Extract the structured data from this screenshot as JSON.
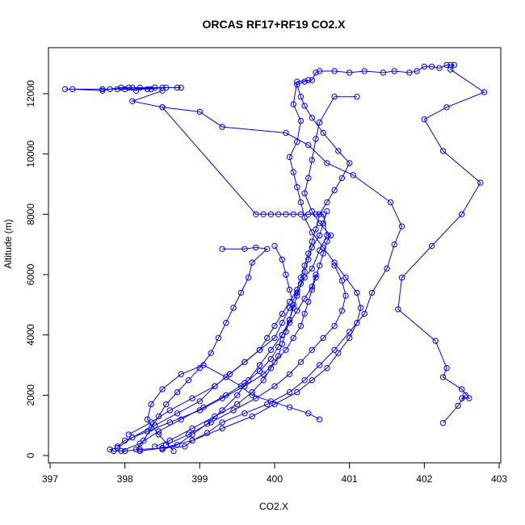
{
  "chart_data": {
    "type": "scatter",
    "title": "ORCAS RF17+RF19 CO2.X",
    "xlabel": "CO2.X",
    "ylabel": "Altitude (m)",
    "xlim": [
      397,
      403
    ],
    "ylim": [
      0,
      13000
    ],
    "x_ticks": [
      397,
      398,
      399,
      400,
      401,
      402,
      403
    ],
    "y_ticks": [
      0,
      2000,
      4000,
      6000,
      8000,
      10000,
      12000
    ],
    "grid": false,
    "legend": "none",
    "color": "#0000ff",
    "series": [
      {
        "values": [
          [
            398.75,
            12200
          ],
          [
            398.1,
            12200
          ],
          [
            397.9,
            12150
          ],
          [
            398.3,
            12150
          ],
          [
            398.5,
            12200
          ],
          [
            398.0,
            12150
          ],
          [
            397.7,
            12150
          ],
          [
            397.2,
            12150
          ],
          [
            397.3,
            12150
          ],
          [
            397.7,
            12100
          ],
          [
            397.8,
            12150
          ],
          [
            397.95,
            12200
          ],
          [
            398.05,
            12200
          ],
          [
            398.15,
            12100
          ],
          [
            398.2,
            12200
          ],
          [
            398.35,
            12150
          ],
          [
            398.4,
            12200
          ],
          [
            398.55,
            12200
          ],
          [
            398.7,
            12200
          ]
        ]
      },
      {
        "values": [
          [
            398.5,
            12100
          ],
          [
            398.1,
            11750
          ],
          [
            398.5,
            11550
          ],
          [
            399.75,
            8000
          ],
          [
            399.85,
            8000
          ],
          [
            399.95,
            8000
          ],
          [
            400.05,
            8000
          ],
          [
            400.15,
            8000
          ],
          [
            400.25,
            8000
          ],
          [
            400.35,
            8000
          ],
          [
            400.45,
            8000
          ],
          [
            400.55,
            8000
          ],
          [
            400.65,
            8000
          ],
          [
            400.7,
            7300
          ],
          [
            400.6,
            6800
          ],
          [
            400.5,
            6200
          ],
          [
            400.4,
            5900
          ],
          [
            400.3,
            5400
          ],
          [
            400.2,
            4900
          ],
          [
            400.1,
            4400
          ],
          [
            400.0,
            3900
          ],
          [
            399.8,
            3500
          ],
          [
            399.6,
            3100
          ],
          [
            399.4,
            2700
          ],
          [
            399.2,
            2300
          ],
          [
            399.0,
            1800
          ],
          [
            398.7,
            1400
          ],
          [
            398.4,
            1000
          ],
          [
            398.1,
            600
          ],
          [
            397.9,
            250
          ],
          [
            397.8,
            200
          ],
          [
            397.85,
            150
          ],
          [
            398.0,
            150
          ],
          [
            398.2,
            200
          ],
          [
            398.5,
            250
          ],
          [
            398.8,
            300
          ],
          [
            398.9,
            500
          ],
          [
            399.1,
            750
          ],
          [
            399.3,
            1100
          ],
          [
            399.6,
            1400
          ],
          [
            399.9,
            1700
          ],
          [
            400.2,
            2100
          ],
          [
            400.4,
            2500
          ],
          [
            400.6,
            3000
          ],
          [
            400.8,
            3500
          ],
          [
            401.0,
            4100
          ],
          [
            401.2,
            4700
          ],
          [
            401.3,
            5400
          ],
          [
            401.5,
            6200
          ],
          [
            401.6,
            7000
          ],
          [
            401.7,
            7600
          ],
          [
            401.55,
            8400
          ],
          [
            401.05,
            9300
          ],
          [
            400.7,
            9700
          ],
          [
            400.45,
            10300
          ],
          [
            400.15,
            10700
          ],
          [
            399.3,
            10900
          ],
          [
            399.0,
            11400
          ],
          [
            398.5,
            11550
          ]
        ]
      },
      {
        "values": [
          [
            398.05,
            700
          ],
          [
            398.35,
            1100
          ],
          [
            398.6,
            1500
          ],
          [
            398.9,
            1900
          ],
          [
            399.2,
            2300
          ],
          [
            399.4,
            2700
          ],
          [
            399.6,
            3100
          ],
          [
            399.8,
            3500
          ],
          [
            399.9,
            3900
          ],
          [
            400.0,
            4300
          ],
          [
            400.1,
            4700
          ],
          [
            400.2,
            5100
          ],
          [
            400.3,
            5500
          ],
          [
            400.35,
            5900
          ],
          [
            400.4,
            6300
          ],
          [
            400.45,
            6700
          ],
          [
            400.5,
            7100
          ],
          [
            400.55,
            7500
          ],
          [
            400.6,
            8000
          ],
          [
            400.7,
            8400
          ],
          [
            400.8,
            8800
          ],
          [
            400.9,
            9200
          ],
          [
            401.0,
            9700
          ],
          [
            400.85,
            10100
          ],
          [
            400.65,
            10700
          ],
          [
            400.5,
            11200
          ],
          [
            400.4,
            11600
          ],
          [
            400.35,
            11900
          ],
          [
            400.3,
            12300
          ],
          [
            400.4,
            12400
          ],
          [
            400.5,
            12450
          ],
          [
            400.55,
            12700
          ],
          [
            400.6,
            12750
          ],
          [
            400.8,
            12750
          ],
          [
            401.0,
            12700
          ],
          [
            401.2,
            12750
          ],
          [
            401.45,
            12700
          ],
          [
            401.6,
            12750
          ],
          [
            401.8,
            12700
          ],
          [
            401.9,
            12750
          ],
          [
            402.0,
            12900
          ],
          [
            402.1,
            12900
          ],
          [
            402.2,
            12850
          ],
          [
            402.3,
            12950
          ],
          [
            402.35,
            12950
          ],
          [
            402.4,
            12950
          ],
          [
            402.35,
            12800
          ],
          [
            402.8,
            12050
          ],
          [
            402.3,
            11550
          ],
          [
            402.0,
            11150
          ],
          [
            402.25,
            10100
          ],
          [
            402.75,
            9050
          ],
          [
            402.5,
            8000
          ],
          [
            402.1,
            6950
          ],
          [
            401.7,
            5900
          ],
          [
            401.65,
            4850
          ],
          [
            402.15,
            3800
          ],
          [
            402.3,
            2900
          ],
          [
            402.25,
            2600
          ],
          [
            402.5,
            2200
          ],
          [
            402.6,
            1900
          ],
          [
            402.5,
            1900
          ],
          [
            402.55,
            2000
          ],
          [
            402.45,
            1650
          ],
          [
            402.25,
            1080
          ]
        ]
      },
      {
        "values": [
          [
            397.9,
            300
          ],
          [
            398.0,
            500
          ],
          [
            398.3,
            800
          ],
          [
            398.6,
            1100
          ],
          [
            399.0,
            1500
          ],
          [
            399.3,
            1900
          ],
          [
            399.6,
            2300
          ],
          [
            399.85,
            2700
          ],
          [
            400.0,
            3100
          ],
          [
            400.15,
            3500
          ],
          [
            400.25,
            3900
          ],
          [
            400.35,
            4300
          ],
          [
            400.4,
            4700
          ],
          [
            400.45,
            5100
          ],
          [
            400.5,
            5500
          ],
          [
            400.55,
            5900
          ],
          [
            400.6,
            6300
          ],
          [
            400.65,
            6700
          ],
          [
            400.7,
            7100
          ],
          [
            400.75,
            7300
          ],
          [
            400.6,
            7700
          ],
          [
            400.5,
            8100
          ],
          [
            400.4,
            8700
          ],
          [
            400.45,
            9200
          ],
          [
            400.5,
            9800
          ],
          [
            400.55,
            10500
          ],
          [
            400.6,
            11050
          ],
          [
            400.8,
            11900
          ],
          [
            401.1,
            11900
          ]
        ]
      },
      {
        "values": [
          [
            398.2,
            150
          ],
          [
            398.5,
            250
          ],
          [
            398.9,
            500
          ],
          [
            399.3,
            900
          ],
          [
            399.7,
            1300
          ],
          [
            400.0,
            1700
          ],
          [
            400.3,
            2100
          ],
          [
            400.5,
            2500
          ],
          [
            400.7,
            2900
          ],
          [
            400.85,
            3400
          ],
          [
            401.0,
            3900
          ],
          [
            401.1,
            4400
          ],
          [
            401.15,
            4900
          ],
          [
            401.1,
            5400
          ],
          [
            400.95,
            5900
          ],
          [
            400.8,
            6400
          ],
          [
            400.65,
            6900
          ],
          [
            400.5,
            7400
          ],
          [
            400.4,
            7900
          ],
          [
            400.35,
            8400
          ],
          [
            400.3,
            8900
          ],
          [
            400.25,
            9400
          ],
          [
            400.2,
            9900
          ],
          [
            400.3,
            10400
          ],
          [
            400.35,
            11100
          ],
          [
            400.25,
            11650
          ],
          [
            400.3,
            12400
          ],
          [
            400.45,
            12450
          ]
        ]
      },
      {
        "values": [
          [
            398.4,
            300
          ],
          [
            398.6,
            500
          ],
          [
            398.9,
            900
          ],
          [
            399.2,
            1300
          ],
          [
            399.5,
            1700
          ],
          [
            399.7,
            2100
          ],
          [
            399.85,
            2500
          ],
          [
            399.95,
            2900
          ],
          [
            400.05,
            3300
          ],
          [
            400.1,
            3700
          ],
          [
            400.15,
            4100
          ],
          [
            400.2,
            4500
          ],
          [
            400.25,
            4900
          ],
          [
            400.3,
            5300
          ],
          [
            400.35,
            5700
          ],
          [
            400.4,
            6100
          ],
          [
            400.45,
            6500
          ],
          [
            400.5,
            6900
          ],
          [
            400.6,
            7300
          ],
          [
            400.65,
            7700
          ],
          [
            400.7,
            8100
          ]
        ]
      },
      {
        "values": [
          [
            397.95,
            150
          ],
          [
            398.2,
            400
          ],
          [
            398.45,
            800
          ],
          [
            398.75,
            1200
          ],
          [
            399.05,
            1600
          ],
          [
            399.35,
            2000
          ],
          [
            399.6,
            2400
          ],
          [
            399.8,
            2800
          ],
          [
            399.95,
            3200
          ],
          [
            400.05,
            3600
          ],
          [
            400.1,
            4000
          ],
          [
            400.2,
            4400
          ],
          [
            400.3,
            4800
          ],
          [
            400.4,
            5200
          ],
          [
            400.5,
            5600
          ],
          [
            400.55,
            6000
          ]
        ]
      },
      {
        "values": [
          [
            398.55,
            350
          ],
          [
            398.85,
            700
          ],
          [
            399.15,
            1100
          ],
          [
            399.45,
            1500
          ],
          [
            399.75,
            1900
          ],
          [
            400.0,
            2300
          ],
          [
            400.2,
            2700
          ],
          [
            400.35,
            3100
          ],
          [
            400.5,
            3500
          ],
          [
            400.65,
            3900
          ],
          [
            400.8,
            4300
          ],
          [
            400.9,
            4800
          ],
          [
            400.95,
            5300
          ],
          [
            400.9,
            5800
          ],
          [
            400.8,
            6300
          ]
        ]
      },
      {
        "values": [
          [
            399.3,
            6850
          ],
          [
            399.6,
            6850
          ],
          [
            399.75,
            6900
          ],
          [
            399.9,
            6850
          ],
          [
            399.7,
            6400
          ],
          [
            399.65,
            5900
          ],
          [
            399.55,
            5400
          ],
          [
            399.45,
            4900
          ],
          [
            399.35,
            4400
          ],
          [
            399.25,
            3900
          ],
          [
            399.15,
            3400
          ],
          [
            399.0,
            2900
          ],
          [
            398.85,
            2500
          ],
          [
            398.7,
            2100
          ],
          [
            398.55,
            1700
          ],
          [
            398.45,
            1300
          ],
          [
            398.35,
            900
          ],
          [
            398.25,
            500
          ],
          [
            398.15,
            200
          ]
        ]
      },
      {
        "values": [
          [
            400.0,
            6950
          ],
          [
            400.1,
            6500
          ],
          [
            400.15,
            6000
          ],
          [
            400.2,
            5500
          ],
          [
            400.25,
            5000
          ],
          [
            400.2,
            4500
          ],
          [
            400.1,
            4000
          ],
          [
            399.95,
            3500
          ],
          [
            399.8,
            3000
          ],
          [
            399.65,
            2500
          ],
          [
            399.5,
            2000
          ],
          [
            399.3,
            1500
          ],
          [
            399.1,
            1050
          ],
          [
            398.9,
            700
          ],
          [
            398.7,
            350
          ],
          [
            398.5,
            200
          ]
        ]
      },
      {
        "values": [
          [
            398.65,
            150
          ],
          [
            398.45,
            700
          ],
          [
            398.3,
            1200
          ],
          [
            398.35,
            1700
          ],
          [
            398.5,
            2200
          ],
          [
            398.75,
            2700
          ],
          [
            399.05,
            3000
          ],
          [
            399.35,
            2600
          ],
          [
            399.55,
            2300
          ],
          [
            399.7,
            2000
          ],
          [
            399.95,
            1800
          ],
          [
            400.2,
            1600
          ],
          [
            400.45,
            1400
          ],
          [
            400.6,
            1200
          ]
        ]
      }
    ]
  }
}
